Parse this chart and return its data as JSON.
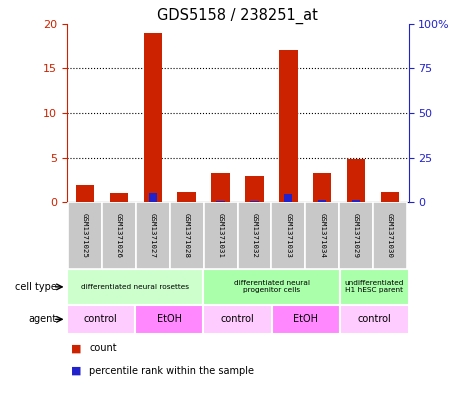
{
  "title": "GDS5158 / 238251_at",
  "samples": [
    "GSM1371025",
    "GSM1371026",
    "GSM1371027",
    "GSM1371028",
    "GSM1371031",
    "GSM1371032",
    "GSM1371033",
    "GSM1371034",
    "GSM1371029",
    "GSM1371030"
  ],
  "count_values": [
    2.0,
    1.1,
    19.0,
    1.2,
    3.3,
    3.0,
    17.0,
    3.3,
    4.8,
    1.2
  ],
  "percentile_values": [
    0.5,
    0.3,
    5.0,
    0.4,
    1.0,
    0.8,
    4.8,
    1.3,
    1.5,
    0.4
  ],
  "bar_width": 0.55,
  "count_color": "#cc2200",
  "percentile_color": "#2222cc",
  "ylim_left": [
    0,
    20
  ],
  "ylim_right": [
    0,
    100
  ],
  "yticks_left": [
    0,
    5,
    10,
    15,
    20
  ],
  "yticks_left_labels": [
    "0",
    "5",
    "10",
    "15",
    "20"
  ],
  "yticks_right": [
    0,
    25,
    50,
    75,
    100
  ],
  "yticks_right_labels": [
    "0",
    "25",
    "50",
    "75",
    "100%"
  ],
  "cell_type_groups": [
    {
      "label": "differentiated neural rosettes",
      "start": 0,
      "end": 4,
      "color": "#ccffcc"
    },
    {
      "label": "differentiated neural\nprogenitor cells",
      "start": 4,
      "end": 8,
      "color": "#aaffaa"
    },
    {
      "label": "undifferentiated\nH1 hESC parent",
      "start": 8,
      "end": 10,
      "color": "#aaffaa"
    }
  ],
  "agent_groups": [
    {
      "label": "control",
      "start": 0,
      "end": 2,
      "color": "#ffccff"
    },
    {
      "label": "EtOH",
      "start": 2,
      "end": 4,
      "color": "#ff88ff"
    },
    {
      "label": "control",
      "start": 4,
      "end": 6,
      "color": "#ffccff"
    },
    {
      "label": "EtOH",
      "start": 6,
      "end": 8,
      "color": "#ff88ff"
    },
    {
      "label": "control",
      "start": 8,
      "end": 10,
      "color": "#ffccff"
    }
  ],
  "cell_type_label": "cell type",
  "agent_label": "agent",
  "legend_count": "count",
  "legend_percentile": "percentile rank within the sample",
  "bg_color": "#ffffff",
  "tick_color_left": "#cc2200",
  "tick_color_right": "#2222cc",
  "sample_bg_color": "#c8c8c8"
}
